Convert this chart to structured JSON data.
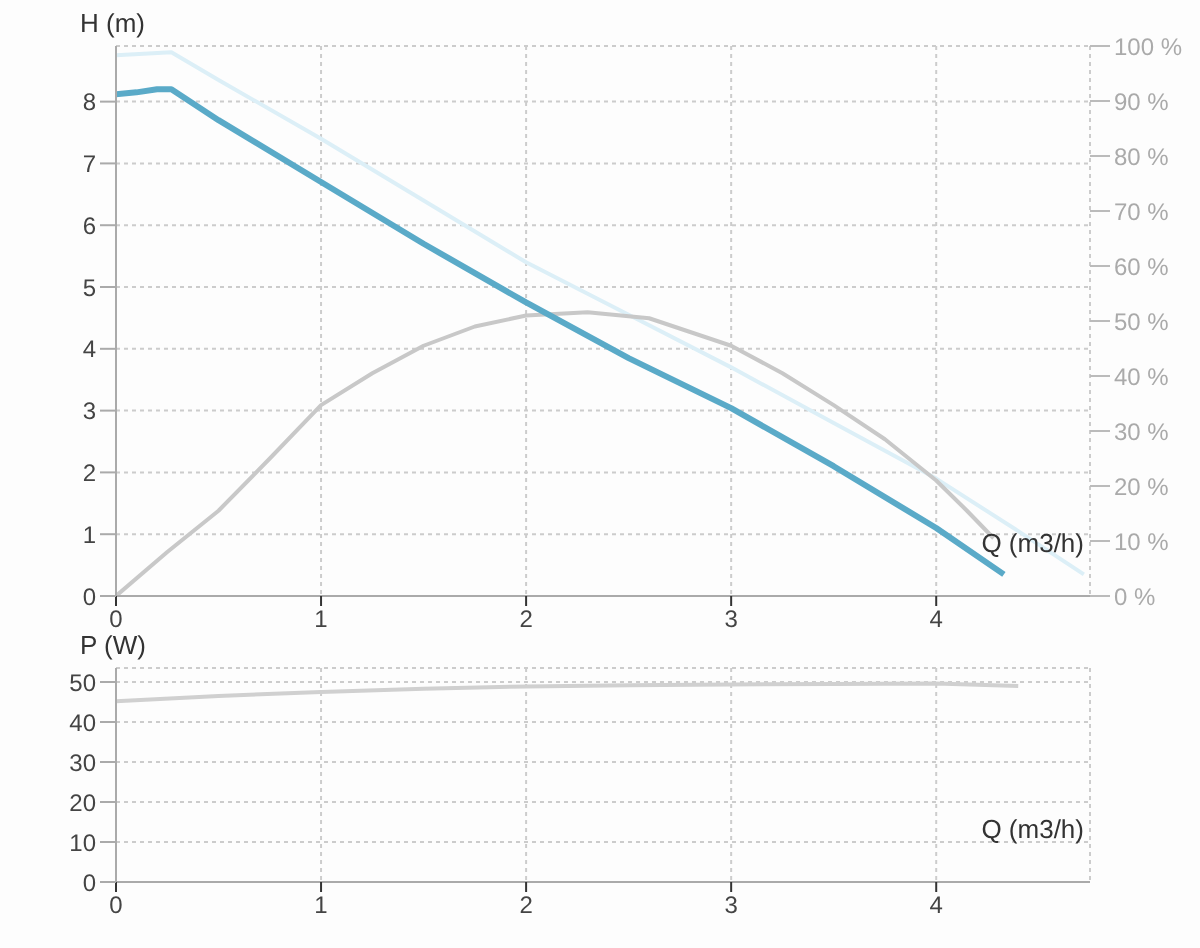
{
  "chart_data": [
    {
      "type": "line",
      "ylabel": "H (m)",
      "xlabel": "Q (m3/h)",
      "xlim": [
        0,
        4.75
      ],
      "xticks": [
        0,
        1,
        2,
        3,
        4
      ],
      "ylim": [
        0,
        8.9
      ],
      "yticks": [
        0,
        1,
        2,
        3,
        4,
        5,
        6,
        7,
        8
      ],
      "y2lim": [
        0,
        100
      ],
      "y2ticks": [
        {
          "value": 0,
          "label": "0 %"
        },
        {
          "value": 10,
          "label": "10 %"
        },
        {
          "value": 20,
          "label": "20 %"
        },
        {
          "value": 30,
          "label": "30 %"
        },
        {
          "value": 40,
          "label": "40 %"
        },
        {
          "value": 50,
          "label": "50 %"
        },
        {
          "value": 60,
          "label": "60 %"
        },
        {
          "value": 70,
          "label": "70 %"
        },
        {
          "value": 80,
          "label": "80 %"
        },
        {
          "value": 90,
          "label": "90 %"
        },
        {
          "value": 100,
          "label": "100 %"
        }
      ],
      "grid": true,
      "marker": "none",
      "series": [
        {
          "color": "#dceff7",
          "x": [
            0,
            0.27,
            0.5,
            1,
            1.5,
            2,
            2.5,
            3,
            3.5,
            4,
            4.4,
            4.72
          ],
          "values": [
            8.75,
            8.8,
            8.35,
            7.4,
            6.4,
            5.4,
            4.55,
            3.7,
            2.8,
            1.9,
            1.05,
            0.35
          ]
        },
        {
          "color": "#c8c8c8",
          "axis": "y2",
          "x": [
            0,
            0.25,
            0.5,
            0.75,
            1,
            1.25,
            1.5,
            1.75,
            2,
            2.3,
            2.6,
            3,
            3.25,
            3.5,
            3.75,
            4,
            4.15,
            4.28
          ],
          "values": [
            0,
            8,
            15.5,
            25,
            34.7,
            40.5,
            45.5,
            49,
            51,
            51.6,
            50.5,
            45.5,
            40.5,
            34.7,
            28.5,
            21,
            15.5,
            10.5
          ]
        },
        {
          "color": "#5aaac8",
          "x": [
            0,
            0.1,
            0.2,
            0.27,
            0.5,
            1,
            1.5,
            2,
            2.5,
            3,
            3.5,
            4,
            4.33
          ],
          "values": [
            8.12,
            8.15,
            8.2,
            8.2,
            7.7,
            6.7,
            5.7,
            4.75,
            3.85,
            3.04,
            2.1,
            1.1,
            0.35
          ]
        }
      ]
    },
    {
      "type": "line",
      "ylabel": "P (W)",
      "xlabel": "Q (m3/h)",
      "xlim": [
        0,
        4.75
      ],
      "xticks": [
        0,
        1,
        2,
        3,
        4
      ],
      "ylim": [
        0,
        53.5
      ],
      "yticks": [
        0,
        10,
        20,
        30,
        40,
        50
      ],
      "grid": true,
      "marker": "none",
      "series": [
        {
          "color": "#d0d0d0",
          "x": [
            0,
            0.5,
            1,
            1.5,
            2,
            2.5,
            3,
            3.5,
            4,
            4.2,
            4.4
          ],
          "values": [
            45.2,
            46.5,
            47.5,
            48.3,
            48.9,
            49.2,
            49.4,
            49.5,
            49.6,
            49.3,
            49
          ]
        }
      ]
    }
  ]
}
